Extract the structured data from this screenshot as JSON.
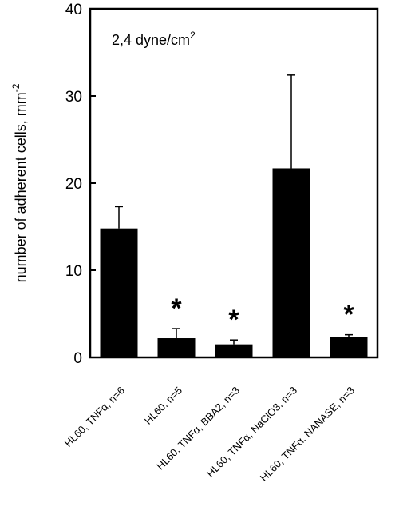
{
  "chart_data": {
    "type": "bar",
    "title": "",
    "annotation": "2,4 dyne/cm",
    "annotation_sup": "2",
    "xlabel": "",
    "ylabel": "number of adherent cells, mm",
    "ylabel_sup": "-2",
    "ylim": [
      0,
      40
    ],
    "yticks": [
      "0",
      "10",
      "20",
      "30",
      "40"
    ],
    "grid": false,
    "bar_color": "#000000",
    "categories": [
      "HL60, TNFα, n=6",
      "HL60, n=5",
      "HL60, TNFα, BBA2, n=3",
      "HL60, TNFα, NaClO3, n=3",
      "HL60, TNFα, NANASE, n=3"
    ],
    "values": [
      14.8,
      2.2,
      1.5,
      21.7,
      2.3
    ],
    "errors": [
      2.5,
      1.1,
      0.5,
      10.7,
      0.3
    ],
    "significant_marker": "*",
    "significant": [
      false,
      true,
      true,
      false,
      true
    ]
  }
}
